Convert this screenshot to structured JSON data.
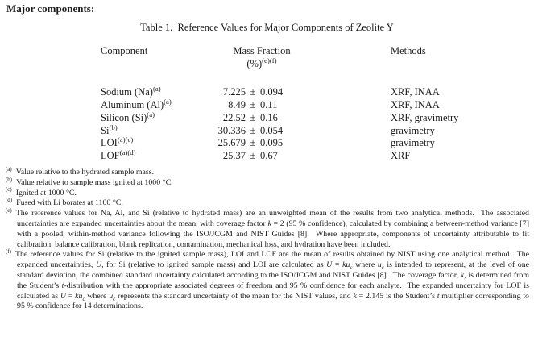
{
  "page": {
    "heading": "Major components:"
  },
  "colors": {
    "text": "#1c1c1c",
    "background": "#ffffff"
  },
  "table": {
    "title": "Table 1.  Reference Values for Major Components of Zeolite Y",
    "columns": {
      "component": "Component",
      "mass_fraction_label": "Mass Fraction",
      "unit_segments": [
        {
          "t": "(%)"
        },
        {
          "t": "(e)(f)",
          "sup": true
        }
      ],
      "methods": "Methods"
    },
    "plus_minus": "±",
    "rows": [
      {
        "component": [
          {
            "t": "Sodium (Na)"
          },
          {
            "t": "(a)",
            "sup": true
          }
        ],
        "value": "7.225",
        "uncertainty": "0.094",
        "methods": "XRF, INAA"
      },
      {
        "component": [
          {
            "t": "Aluminum (Al)"
          },
          {
            "t": "(a)",
            "sup": true
          }
        ],
        "value": "8.49",
        "uncertainty": "0.11",
        "methods": "XRF, INAA"
      },
      {
        "component": [
          {
            "t": "Silicon (Si)"
          },
          {
            "t": "(a)",
            "sup": true
          }
        ],
        "value": "22.52",
        "uncertainty": "0.16",
        "methods": "XRF, gravimetry"
      },
      {
        "component": [
          {
            "t": "Si"
          },
          {
            "t": "(b)",
            "sup": true
          }
        ],
        "value": "30.336",
        "uncertainty": "0.054",
        "methods": "gravimetry"
      },
      {
        "component": [
          {
            "t": "LOI"
          },
          {
            "t": "(a)(c)",
            "sup": true
          }
        ],
        "value": "25.679",
        "uncertainty": "0.095",
        "methods": "gravimetry"
      },
      {
        "component": [
          {
            "t": "LOF"
          },
          {
            "t": "(a)(d)",
            "sup": true
          }
        ],
        "value": "25.37",
        "uncertainty": "0.67",
        "methods": "XRF"
      }
    ]
  },
  "footnotes": [
    {
      "marker": "(a)",
      "segments": [
        {
          "t": "Value relative to the hydrated sample mass."
        }
      ]
    },
    {
      "marker": "(b)",
      "segments": [
        {
          "t": "Value relative to sample mass ignited at 1000 °C."
        }
      ]
    },
    {
      "marker": "(c)",
      "segments": [
        {
          "t": "Ignited at 1000 °C."
        }
      ]
    },
    {
      "marker": "(d)",
      "segments": [
        {
          "t": "Fused with Li borates at 1100 °C."
        }
      ]
    },
    {
      "marker": "(e)",
      "segments": [
        {
          "t": "The reference values for Na, Al, and Si (relative to hydrated mass) are an unweighted mean of the results from two analytical methods.  The associated uncertainties are expanded uncertainties about the mean, with coverage factor "
        },
        {
          "t": "k",
          "i": true
        },
        {
          "t": " = 2 (95 % confidence), calculated by combining a between-method variance [7] with a pooled, within-method variance following the ISO/JCGM and NIST Guides [8].  Where appropriate, components of uncertainty attributable to fit calibration, balance calibration, blank replication, contamination, mechanical loss, and hydration have been included."
        }
      ]
    },
    {
      "marker": "(f)",
      "segments": [
        {
          "t": "The reference values for Si (relative to the ignited sample mass), LOI and LOF are the mean of results obtained by NIST using one analytical method.  The expanded uncertainties, "
        },
        {
          "t": "U",
          "i": true
        },
        {
          "t": ", for Si (relative to ignited sample mass) and LOI are calculated as "
        },
        {
          "t": "U",
          "i": true
        },
        {
          "t": " = "
        },
        {
          "t": "ku",
          "i": true
        },
        {
          "t": "c",
          "i": true,
          "sub": true
        },
        {
          "t": " where "
        },
        {
          "t": "u",
          "i": true
        },
        {
          "t": "c",
          "i": true,
          "sub": true
        },
        {
          "t": " is intended to represent, at the level of one standard deviation, the combined standard uncertainty calculated according to the ISO/JCGM and NIST Guides [8].  The coverage factor, "
        },
        {
          "t": "k",
          "i": true
        },
        {
          "t": ", is determined from the Student’s "
        },
        {
          "t": "t",
          "i": true
        },
        {
          "t": "-distribution with the appropriate associated degrees of freedom and 95 % confidence for each analyte.  The expanded uncertainty for LOF is calculated as "
        },
        {
          "t": "U",
          "i": true
        },
        {
          "t": " = "
        },
        {
          "t": "ku",
          "i": true
        },
        {
          "t": "c",
          "i": true,
          "sub": true
        },
        {
          "t": " where "
        },
        {
          "t": "u",
          "i": true
        },
        {
          "t": "c",
          "i": true,
          "sub": true
        },
        {
          "t": " represents the standard uncertainty of the mean for the NIST values, and "
        },
        {
          "t": "k",
          "i": true
        },
        {
          "t": " = 2.145 is the Student’s "
        },
        {
          "t": "t",
          "i": true
        },
        {
          "t": " multiplier corresponding to 95 % confidence for 14 determinations."
        }
      ]
    }
  ]
}
